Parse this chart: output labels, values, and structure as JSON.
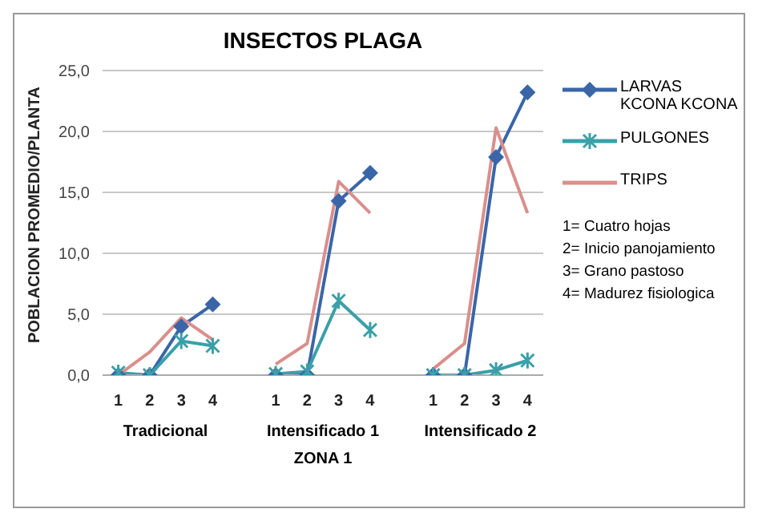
{
  "chart_data": {
    "type": "line",
    "title": "INSECTOS PLAGA",
    "xlabel": "ZONA 1",
    "ylabel": "POBLACION PROMEDIO/PLANTA",
    "categories": [
      "1",
      "2",
      "3",
      "4",
      null,
      "1",
      "2",
      "3",
      "4",
      null,
      "1",
      "2",
      "3",
      "4"
    ],
    "series": [
      {
        "name": "LARVAS KCONA KCONA",
        "color": "#3a66a8",
        "marker": "diamond",
        "values": [
          0,
          0,
          4.0,
          5.8,
          null,
          0,
          0,
          14.3,
          16.6,
          null,
          0,
          0,
          17.9,
          23.2
        ]
      },
      {
        "name": "PULGONES",
        "color": "#3aa0a8",
        "marker": "cross",
        "values": [
          0.2,
          0,
          2.8,
          2.4,
          null,
          0.1,
          0.3,
          6.1,
          3.7,
          null,
          0,
          0,
          0.4,
          1.2
        ]
      },
      {
        "name": "TRIPS",
        "color": "#d98f8c",
        "marker": "none",
        "values": [
          0,
          1.9,
          4.7,
          2.9,
          null,
          0.9,
          2.6,
          15.9,
          13.3,
          null,
          0.5,
          2.6,
          20.3,
          13.3
        ]
      }
    ],
    "annotations": [
      "Tradicional",
      "Intensificado 1",
      "Intensificado 2",
      "1= Cuatro hojas",
      "2= Inicio panojamiento",
      "3= Grano pastoso",
      "4= Madurez fisiologica"
    ],
    "ylim": [
      0,
      25
    ],
    "yticks": [
      {
        "value": 0,
        "label": "0,0"
      },
      {
        "value": 5,
        "label": "5,0"
      },
      {
        "value": 10,
        "label": "10,0"
      },
      {
        "value": 15,
        "label": "15,0"
      },
      {
        "value": 20,
        "label": "20,0"
      },
      {
        "value": 25,
        "label": "25,0"
      }
    ],
    "grid": "y",
    "legend": "right"
  }
}
